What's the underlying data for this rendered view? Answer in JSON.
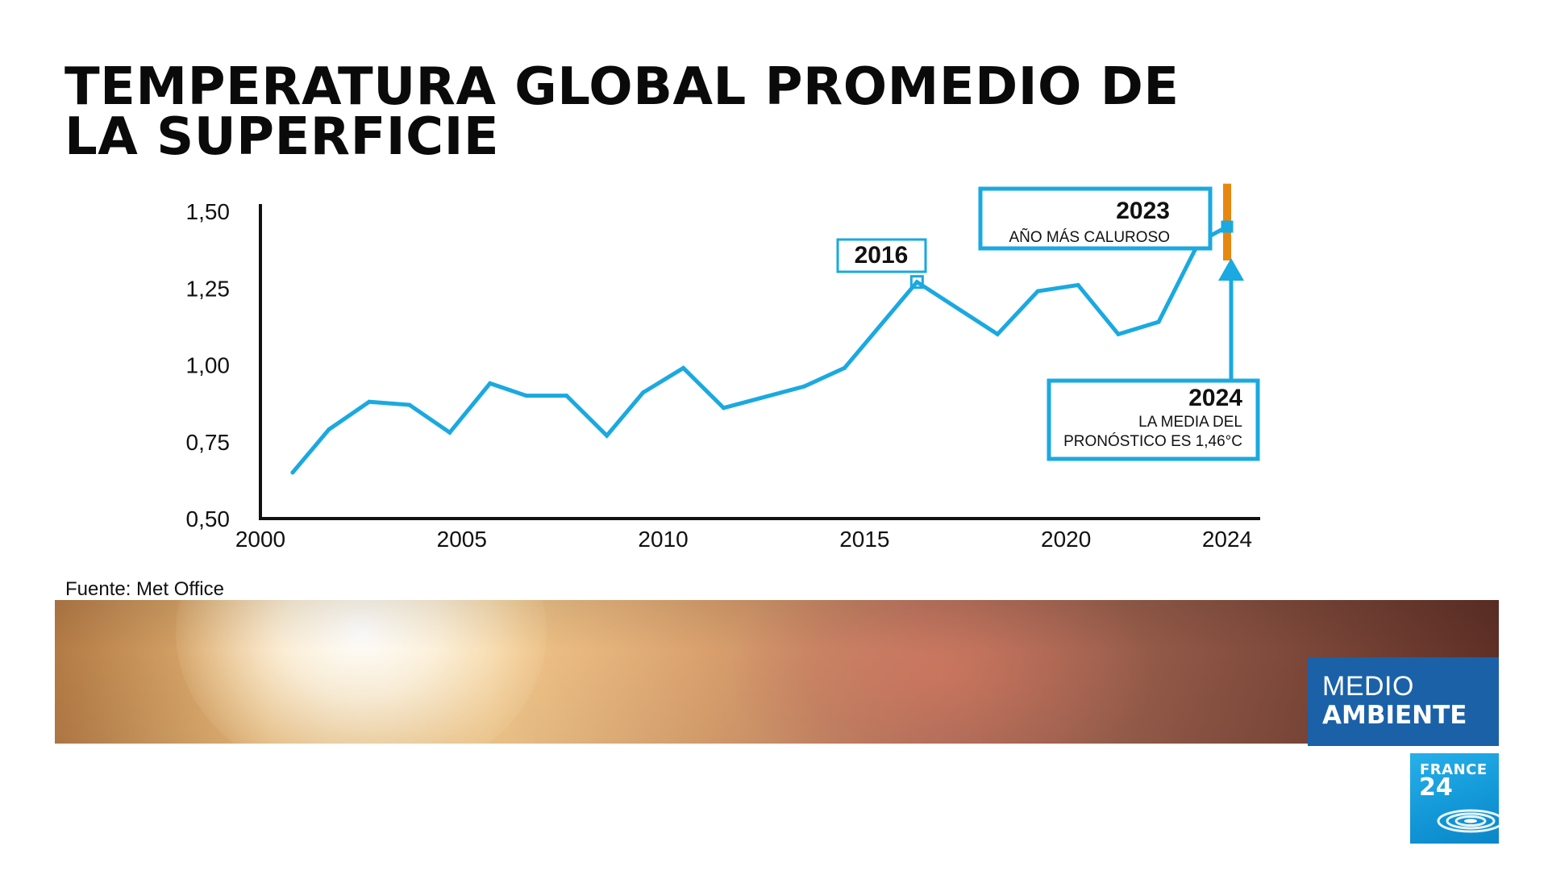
{
  "title": {
    "line1": "TEMPERATURA GLOBAL PROMEDIO DE",
    "line2": "LA SUPERFICIE"
  },
  "source": "Fuente: Met Office",
  "colors": {
    "line": "#1aa9e0",
    "axis": "#111111",
    "highlight_bar": "#e8870f",
    "banner_box": "#1a61a8",
    "logo": "#1aa3e3"
  },
  "chart_data": {
    "type": "line",
    "title": "TEMPERATURA GLOBAL PROMEDIO DE LA SUPERFICIE",
    "xlabel": "",
    "ylabel": "",
    "xlim": [
      2000,
      2024
    ],
    "ylim": [
      0.5,
      1.5
    ],
    "x_ticks": [
      2000,
      2005,
      2010,
      2015,
      2020,
      2024
    ],
    "x_tick_labels": [
      "2000",
      "2005",
      "2010",
      "2015",
      "2020",
      "2024"
    ],
    "y_ticks": [
      0.5,
      0.75,
      1.0,
      1.25,
      1.5
    ],
    "y_tick_labels": [
      "0,50",
      "0,75",
      "1,00",
      "1,25",
      "1,50"
    ],
    "grid": false,
    "series": [
      {
        "name": "Temperatura global promedio",
        "x": [
          2000.8,
          2001.7,
          2002.7,
          2003.7,
          2004.7,
          2005.7,
          2006.6,
          2007.6,
          2008.6,
          2009.5,
          2010.5,
          2011.5,
          2013.5,
          2014.5,
          2016.3,
          2018.3,
          2019.3,
          2020.3,
          2021.3,
          2022.3,
          2023.3,
          2024.0
        ],
        "values": [
          0.65,
          0.79,
          0.88,
          0.87,
          0.78,
          0.94,
          0.9,
          0.9,
          0.77,
          0.91,
          0.99,
          0.86,
          0.93,
          0.99,
          1.27,
          1.1,
          1.24,
          1.26,
          1.1,
          1.14,
          1.4,
          1.45
        ]
      }
    ],
    "highlight_bar": {
      "x": 2024.0,
      "from": 1.34,
      "to": 1.59
    },
    "annotations": [
      {
        "year": "2016",
        "text": []
      },
      {
        "year": "2023",
        "text": [
          "AÑO MÁS CALUROSO"
        ]
      },
      {
        "year": "2024",
        "text": [
          "LA MEDIA DEL",
          "PRONÓSTICO ES 1,46°C"
        ]
      }
    ]
  },
  "branding": {
    "section_line1": "MEDIO",
    "section_line2": "AMBIENTE",
    "logo_line1": "FRANCE",
    "logo_line2": "24"
  }
}
